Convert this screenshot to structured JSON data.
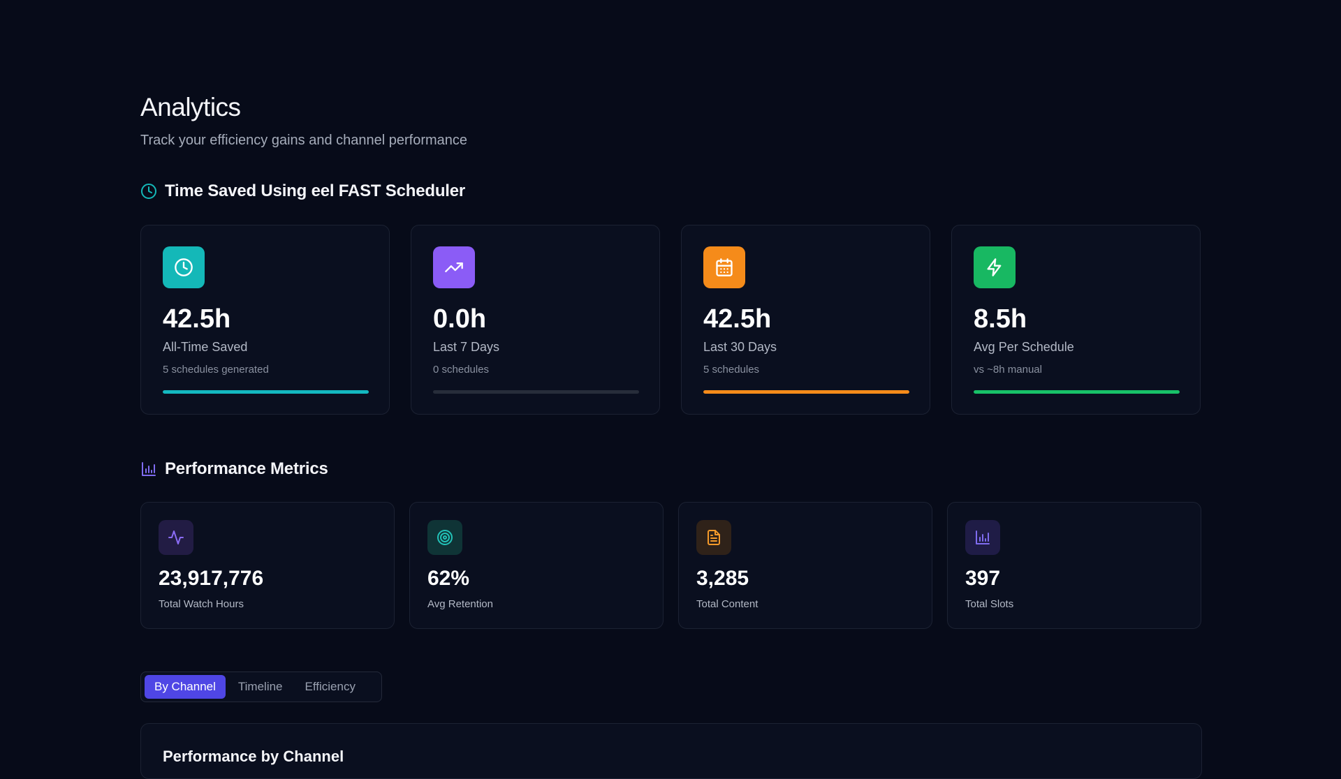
{
  "header": {
    "title": "Analytics",
    "subtitle": "Track your efficiency gains and channel performance"
  },
  "time_saved": {
    "heading": "Time Saved Using eel FAST Scheduler",
    "heading_icon": "clock-icon",
    "cards": [
      {
        "icon": "clock-icon",
        "icon_bg": "#14b8b8",
        "value": "42.5h",
        "label": "All-Time Saved",
        "sub": "5 schedules generated",
        "bar_color": "#14b8c0",
        "progress": 1.0
      },
      {
        "icon": "trending-up-icon",
        "icon_bg": "#8b5cf6",
        "value": "0.0h",
        "label": "Last 7 Days",
        "sub": "0 schedules",
        "bar_color": "#8b5cf6",
        "progress": 0.0
      },
      {
        "icon": "calendar-icon",
        "icon_bg": "#f58b1a",
        "value": "42.5h",
        "label": "Last 30 Days",
        "sub": "5 schedules",
        "bar_color": "#f58b1a",
        "progress": 1.0
      },
      {
        "icon": "lightning-icon",
        "icon_bg": "#18b862",
        "value": "8.5h",
        "label": "Avg Per Schedule",
        "sub": "vs ~8h manual",
        "bar_color": "#18c168",
        "progress": 1.0
      }
    ]
  },
  "performance": {
    "heading": "Performance Metrics",
    "heading_icon": "bar-chart-icon",
    "cards": [
      {
        "icon": "activity-icon",
        "icon_bg": "#221c44",
        "icon_color": "#8b6cf6",
        "value": "23,917,776",
        "label": "Total Watch Hours"
      },
      {
        "icon": "target-icon",
        "icon_bg": "#0f3436",
        "icon_color": "#22c2b8",
        "value": "62%",
        "label": "Avg Retention"
      },
      {
        "icon": "document-icon",
        "icon_bg": "#2f2219",
        "icon_color": "#f59a2a",
        "value": "3,285",
        "label": "Total Content"
      },
      {
        "icon": "bar-chart-icon",
        "icon_bg": "#1f1c46",
        "icon_color": "#7f6cf0",
        "value": "397",
        "label": "Total Slots"
      }
    ]
  },
  "tabs": {
    "items": [
      "By Channel",
      "Timeline",
      "Efficiency"
    ],
    "active": "By Channel"
  },
  "channel_panel": {
    "title": "Performance by Channel"
  },
  "colors": {
    "background": "#070b19",
    "card": "#0a0f1f",
    "accent": "#4f46e5",
    "teal": "#14b8b8"
  }
}
